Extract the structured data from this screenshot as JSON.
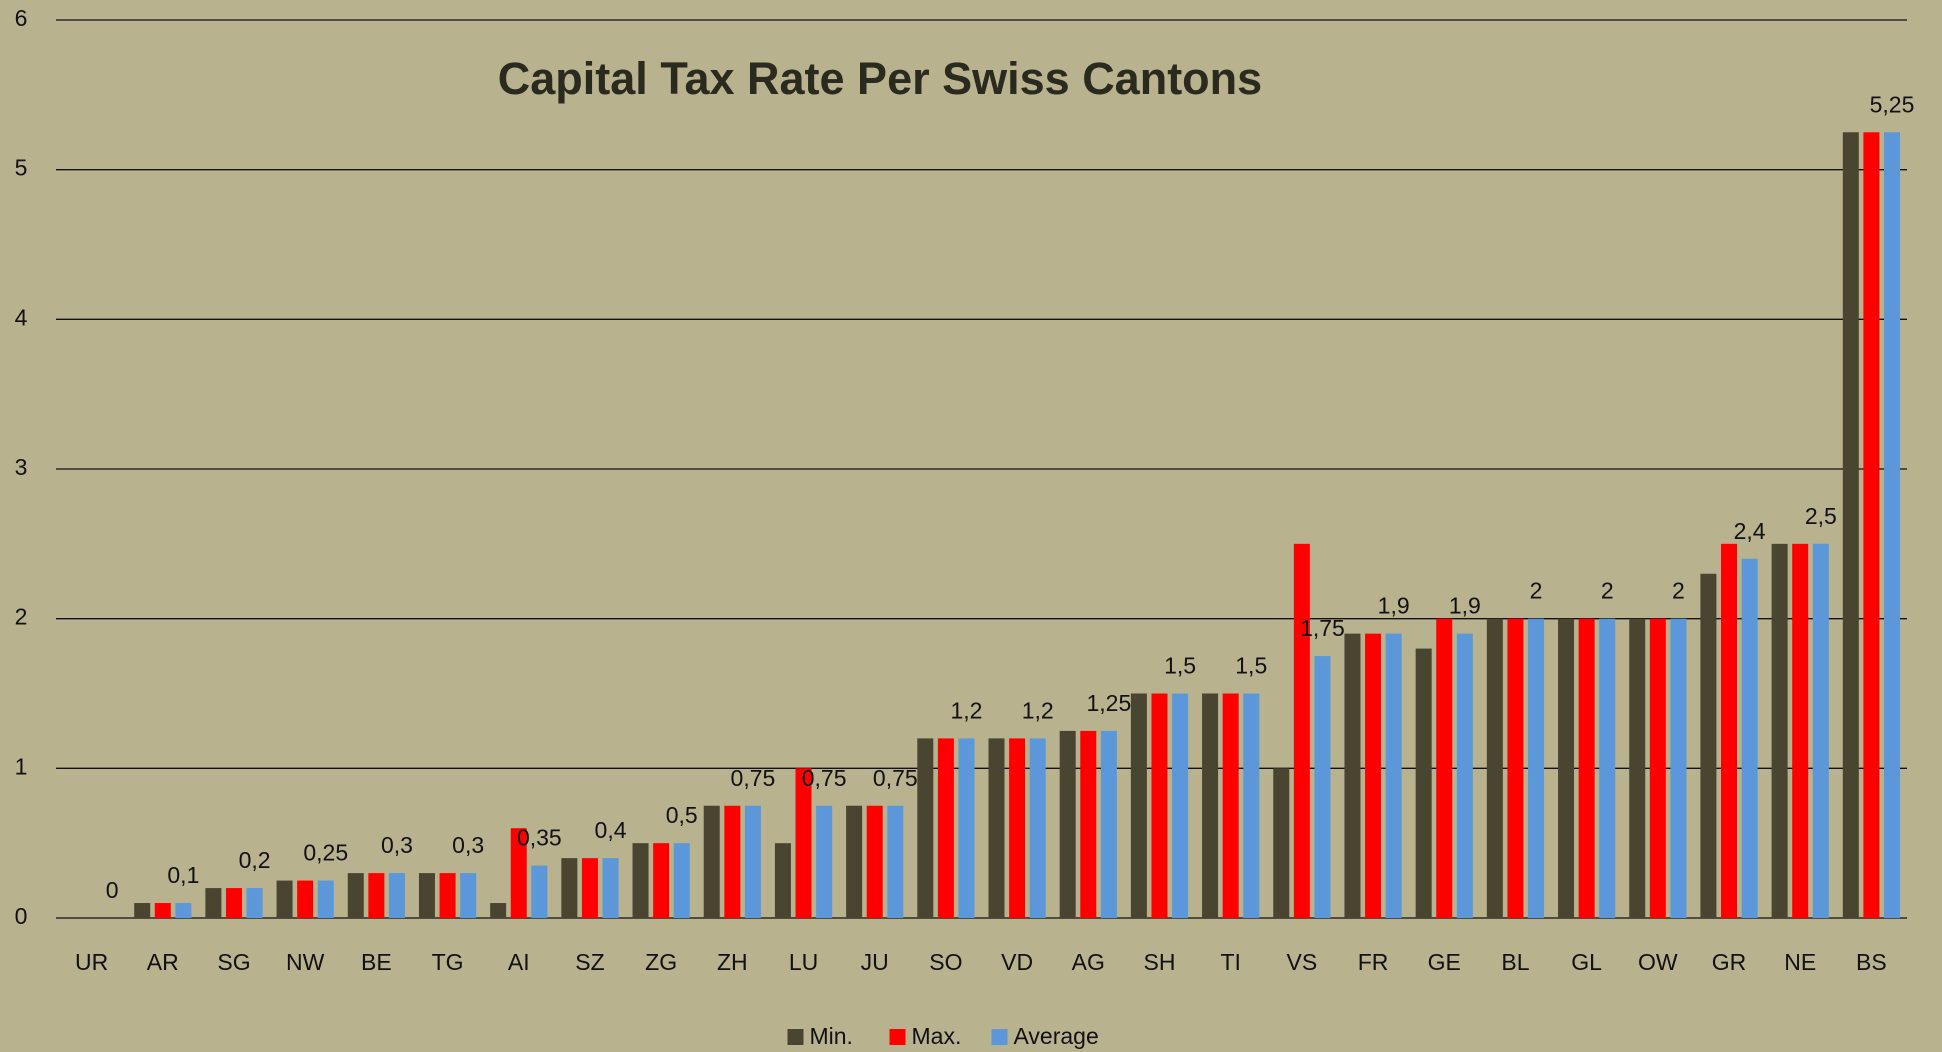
{
  "chart_data": {
    "type": "bar",
    "title": "Capital Tax Rate Per Swiss Cantons",
    "categories": [
      "UR",
      "AR",
      "SG",
      "NW",
      "BE",
      "TG",
      "AI",
      "SZ",
      "ZG",
      "ZH",
      "LU",
      "JU",
      "SO",
      "VD",
      "AG",
      "SH",
      "TI",
      "VS",
      "FR",
      "GE",
      "BL",
      "GL",
      "OW",
      "GR",
      "NE",
      "BS"
    ],
    "series": [
      {
        "name": "Min.",
        "color": "#4a4530",
        "values": [
          0,
          0.1,
          0.2,
          0.25,
          0.3,
          0.3,
          0.1,
          0.4,
          0.5,
          0.75,
          0.5,
          0.75,
          1.2,
          1.2,
          1.25,
          1.5,
          1.5,
          1,
          1.9,
          1.8,
          2,
          2,
          2,
          2.3,
          2.5,
          5.25
        ]
      },
      {
        "name": "Max.",
        "color": "#ff0000",
        "values": [
          0,
          0.1,
          0.2,
          0.25,
          0.3,
          0.3,
          0.6,
          0.4,
          0.5,
          0.75,
          1,
          0.75,
          1.2,
          1.2,
          1.25,
          1.5,
          1.5,
          2.5,
          1.9,
          2,
          2,
          2,
          2,
          2.5,
          2.5,
          5.25
        ]
      },
      {
        "name": "Average",
        "color": "#5b97d9",
        "values": [
          0,
          0.1,
          0.2,
          0.25,
          0.3,
          0.3,
          0.35,
          0.4,
          0.5,
          0.75,
          0.75,
          0.75,
          1.2,
          1.2,
          1.25,
          1.5,
          1.5,
          1.75,
          1.9,
          1.9,
          2,
          2,
          2,
          2.4,
          2.5,
          5.25
        ],
        "value_labels": [
          "0",
          "0,1",
          "0,2",
          "0,25",
          "0,3",
          "0,3",
          "0,35",
          "0,4",
          "0,5",
          "0,75",
          "0,75",
          "0,75",
          "1,2",
          "1,2",
          "1,25",
          "1,5",
          "1,5",
          "1,75",
          "1,9",
          "1,9",
          "2",
          "2",
          "2",
          "2,4",
          "2,5",
          "5,25"
        ]
      }
    ],
    "ylim": [
      0,
      6
    ],
    "yticks": [
      0,
      1,
      2,
      3,
      4,
      5,
      6
    ],
    "grid": true,
    "legend": "bottom"
  }
}
